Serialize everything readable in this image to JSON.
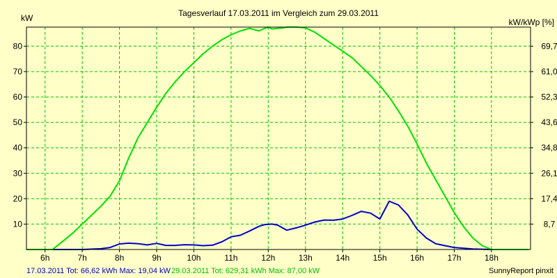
{
  "chart_data": {
    "type": "line",
    "title": "Tagesverlauf 17.03.2011 im Vergleich zum 29.03.2011",
    "ylabel_left": "kW",
    "ylabel_right": "kW/kWp [%]",
    "ylim": [
      0,
      87.5
    ],
    "xlim": [
      5.5,
      19.05
    ],
    "x_tick_labels": [
      "6h",
      "7h",
      "8h",
      "9h",
      "10h",
      "11h",
      "12h",
      "13h",
      "14h",
      "15h",
      "16h",
      "17h",
      "18h"
    ],
    "x_tick_values": [
      6,
      7,
      8,
      9,
      10,
      11,
      12,
      13,
      14,
      15,
      16,
      17,
      18
    ],
    "y_tick_values": [
      10,
      20,
      30,
      40,
      50,
      60,
      70,
      80
    ],
    "y_tick_labels": [
      "10",
      "20",
      "30",
      "40",
      "50",
      "60",
      "70",
      "80"
    ],
    "y2_tick_labels": [
      "8,7",
      "17,4",
      "26,1",
      "34,8",
      "43,6",
      "52,3",
      "61,0",
      "69,7"
    ],
    "grid": true,
    "colors": {
      "background": "#ffffc8",
      "grid": "#00c000",
      "series_1": "#0000c8",
      "series_2": "#00e000"
    },
    "series": [
      {
        "name": "17.03.2011",
        "color": "#0000c8",
        "x": [
          5.5,
          6.0,
          6.5,
          7.0,
          7.5,
          7.75,
          8.0,
          8.25,
          8.5,
          8.75,
          9.0,
          9.25,
          9.5,
          9.75,
          10.0,
          10.25,
          10.5,
          10.75,
          11.0,
          11.25,
          11.5,
          11.75,
          11.9,
          12.1,
          12.25,
          12.5,
          12.75,
          13.0,
          13.25,
          13.5,
          13.75,
          14.0,
          14.25,
          14.5,
          14.75,
          15.0,
          15.25,
          15.5,
          15.75,
          16.0,
          16.25,
          16.5,
          16.75,
          17.0,
          17.5,
          18.0,
          18.5
        ],
        "values": [
          0,
          0,
          0,
          0,
          0.3,
          0.8,
          2.2,
          2.5,
          2.3,
          1.8,
          2.4,
          1.6,
          1.6,
          1.9,
          1.8,
          1.5,
          1.7,
          3.0,
          5.0,
          5.6,
          7.3,
          9.1,
          9.8,
          10.0,
          9.6,
          7.6,
          8.5,
          9.6,
          10.8,
          11.6,
          11.5,
          12.0,
          13.4,
          15.0,
          14.3,
          12.0,
          19.0,
          17.5,
          13.6,
          8.0,
          4.5,
          2.3,
          1.5,
          0.8,
          0.2,
          0,
          0
        ]
      },
      {
        "name": "29.03.2011",
        "color": "#00e000",
        "x": [
          5.5,
          6.0,
          6.2,
          6.5,
          6.75,
          7.0,
          7.25,
          7.5,
          7.75,
          8.0,
          8.25,
          8.5,
          8.75,
          9.0,
          9.25,
          9.5,
          9.75,
          10.0,
          10.25,
          10.5,
          10.75,
          11.0,
          11.25,
          11.5,
          11.75,
          11.9,
          12.0,
          12.1,
          12.25,
          12.4,
          12.5,
          12.75,
          13.0,
          13.25,
          13.5,
          13.75,
          14.0,
          14.25,
          14.5,
          14.75,
          15.0,
          15.25,
          15.5,
          15.75,
          16.0,
          16.25,
          16.5,
          16.75,
          17.0,
          17.25,
          17.5,
          17.75,
          18.0,
          18.25,
          18.5,
          19.0
        ],
        "values": [
          0,
          0,
          0,
          3.5,
          6.5,
          10.0,
          13.5,
          17.0,
          21.0,
          27.0,
          36.0,
          44.0,
          50.0,
          56.0,
          61.5,
          66.0,
          70.0,
          73.5,
          77.0,
          80.0,
          82.5,
          84.5,
          86.0,
          87.0,
          86.0,
          87.0,
          87.5,
          86.8,
          87.0,
          87.2,
          87.5,
          87.5,
          87.2,
          85.5,
          83.0,
          80.5,
          78.0,
          75.5,
          72.0,
          68.5,
          64.5,
          60.0,
          54.5,
          48.5,
          41.5,
          34.0,
          27.5,
          21.0,
          14.5,
          9.0,
          4.5,
          1.5,
          0,
          0,
          0,
          0
        ]
      }
    ],
    "footer": {
      "series_1_text": "17.03.2011 Tot: 66,62 kWh Max: 19,04 kW",
      "series_2_text": "29.03.2011 Tot: 629,31 kWh Max: 87,00 kW",
      "credit": "SunnyReport pinxit"
    }
  }
}
